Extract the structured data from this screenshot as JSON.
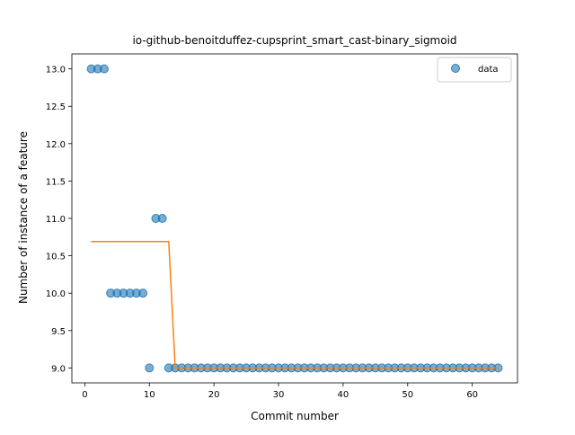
{
  "chart_data": {
    "type": "scatter",
    "title": "io-github-benoitduffez-cupsprint_smart_cast-binary_sigmoid",
    "xlabel": "Commit number",
    "ylabel": "Number of instance of a feature",
    "xlim": [
      -2,
      67
    ],
    "ylim": [
      8.8,
      13.2
    ],
    "xticks": [
      0,
      10,
      20,
      30,
      40,
      50,
      60
    ],
    "yticks": [
      9.0,
      9.5,
      10.0,
      10.5,
      11.0,
      11.5,
      12.0,
      12.5,
      13.0
    ],
    "ytick_labels": [
      "9.0",
      "9.5",
      "10.0",
      "10.5",
      "11.0",
      "11.5",
      "12.0",
      "12.5",
      "13.0"
    ],
    "grid": false,
    "legend_position": "top-right",
    "series": [
      {
        "name": "data",
        "kind": "scatter",
        "color": "#1f77b4",
        "x": [
          1,
          2,
          3,
          4,
          5,
          6,
          7,
          8,
          9,
          10,
          11,
          12,
          13,
          14,
          15,
          16,
          17,
          18,
          19,
          20,
          21,
          22,
          23,
          24,
          25,
          26,
          27,
          28,
          29,
          30,
          31,
          32,
          33,
          34,
          35,
          36,
          37,
          38,
          39,
          40,
          41,
          42,
          43,
          44,
          45,
          46,
          47,
          48,
          49,
          50,
          51,
          52,
          53,
          54,
          55,
          56,
          57,
          58,
          59,
          60,
          61,
          62,
          63,
          64
        ],
        "y": [
          13,
          13,
          13,
          10,
          10,
          10,
          10,
          10,
          10,
          9,
          11,
          11,
          9,
          9,
          9,
          9,
          9,
          9,
          9,
          9,
          9,
          9,
          9,
          9,
          9,
          9,
          9,
          9,
          9,
          9,
          9,
          9,
          9,
          9,
          9,
          9,
          9,
          9,
          9,
          9,
          9,
          9,
          9,
          9,
          9,
          9,
          9,
          9,
          9,
          9,
          9,
          9,
          9,
          9,
          9,
          9,
          9,
          9,
          9,
          9,
          9,
          9,
          9,
          9
        ]
      },
      {
        "kind": "line",
        "color": "#ff7f0e",
        "x": [
          1,
          13,
          14,
          64
        ],
        "y": [
          10.69,
          10.69,
          9.0,
          9.0
        ]
      }
    ]
  }
}
